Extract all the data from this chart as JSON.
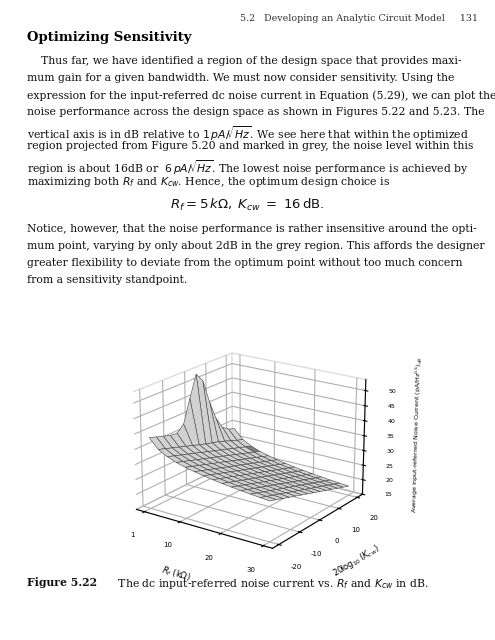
{
  "page_bg": "#ffffff",
  "header_text": "5.2   Developing an Analytic Circuit Model     131",
  "section_title": "Optimizing Sensitivity",
  "body1_lines": [
    "    Thus far, we have identified a region of the design space that provides maxi-",
    "mum gain for a given bandwidth. We must now consider sensitivity. Using the",
    "expression for the input-referred dc noise current in Equation (5.29), we can plot the",
    "noise performance across the design space as shown in Figures 5.22 and 5.23. The",
    "vertical axis is in dB relative to $1\\,pA/\\!\\sqrt{Hz}$. We see here that within the optimized",
    "region projected from Figure 5.20 and marked in grey, the noise level within this",
    "region is about 16dB or  $6\\,pA/\\!\\sqrt{Hz}$. The lowest noise performance is achieved by",
    "maximizing both $R_f$ and $K_{cw}$. Hence, the optimum design choice is"
  ],
  "equation": "$R_f = 5\\,k\\Omega,\\; K_{cw} \\; = \\; 16\\,\\mathrm{dB}.$",
  "body2_lines": [
    "Notice, however, that the noise performance is rather insensitive around the opti-",
    "mum point, varying by only about 2dB in the grey region. This affords the designer",
    "greater flexibility to deviate from the optimum point without too much concern",
    "from a sensitivity standpoint."
  ],
  "fig_bold": "Figure 5.22",
  "fig_caption": "    The dc input-referred noise current vs. $R_f$ and $K_{cw}$ in dB.",
  "zlabel": "Average input-referred Noise Current (pA/Hz$^{0.5}$)$_{dB}$",
  "xlabel": "$R_f$ (k$\\Omega$)",
  "ylabel": "$20\\!\\log_{10}(K_{cw})$"
}
